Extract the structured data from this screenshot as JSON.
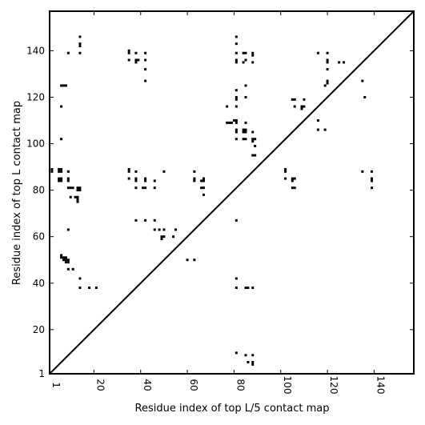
{
  "chart_data": {
    "type": "scatter",
    "title": "",
    "xlabel": "Residue index of top L/5 contact map",
    "ylabel": "Residue index of top L contact map",
    "xlim": [
      1,
      157
    ],
    "ylim": [
      1,
      157
    ],
    "xticks": [
      1,
      20,
      40,
      60,
      80,
      100,
      120,
      140
    ],
    "yticks": [
      1,
      20,
      40,
      60,
      80,
      100,
      120,
      140
    ],
    "grid": false,
    "legend": "none",
    "diagonal": true,
    "marker_color": "#000000",
    "series": [
      {
        "values": [
          [
            2,
            89
          ],
          [
            2,
            88
          ],
          [
            5,
            89
          ],
          [
            6,
            89
          ],
          [
            6,
            88
          ],
          [
            5,
            88
          ],
          [
            5,
            85
          ],
          [
            6,
            85
          ],
          [
            5,
            84
          ],
          [
            6,
            84
          ],
          [
            6,
            125
          ],
          [
            7,
            125
          ],
          [
            8,
            125
          ],
          [
            6,
            116
          ],
          [
            6,
            102
          ],
          [
            6,
            52
          ],
          [
            7,
            51
          ],
          [
            6,
            51
          ],
          [
            8,
            51
          ],
          [
            8,
            50
          ],
          [
            9,
            50
          ],
          [
            9,
            49
          ],
          [
            8,
            49
          ],
          [
            7,
            50
          ],
          [
            9,
            88
          ],
          [
            9,
            85
          ],
          [
            9,
            84
          ],
          [
            9,
            81
          ],
          [
            10,
            81
          ],
          [
            11,
            81
          ],
          [
            10,
            77
          ],
          [
            12,
            77
          ],
          [
            13,
            77
          ],
          [
            13,
            76
          ],
          [
            13,
            75
          ],
          [
            13,
            81
          ],
          [
            14,
            81
          ],
          [
            13,
            80
          ],
          [
            14,
            80
          ],
          [
            9,
            63
          ],
          [
            9,
            46
          ],
          [
            11,
            46
          ],
          [
            14,
            42
          ],
          [
            14,
            38
          ],
          [
            18,
            38
          ],
          [
            21,
            38
          ],
          [
            9,
            139
          ],
          [
            14,
            146
          ],
          [
            14,
            143
          ],
          [
            14,
            142
          ],
          [
            14,
            139
          ],
          [
            35,
            140
          ],
          [
            35,
            139
          ],
          [
            35,
            136
          ],
          [
            38,
            139
          ],
          [
            38,
            136
          ],
          [
            39,
            136
          ],
          [
            38,
            135
          ],
          [
            42,
            139
          ],
          [
            42,
            136
          ],
          [
            42,
            132
          ],
          [
            42,
            127
          ],
          [
            35,
            89
          ],
          [
            35,
            88
          ],
          [
            35,
            85
          ],
          [
            38,
            88
          ],
          [
            38,
            85
          ],
          [
            38,
            84
          ],
          [
            38,
            81
          ],
          [
            41,
            81
          ],
          [
            42,
            81
          ],
          [
            42,
            84
          ],
          [
            42,
            85
          ],
          [
            46,
            84
          ],
          [
            46,
            81
          ],
          [
            38,
            67
          ],
          [
            42,
            67
          ],
          [
            46,
            67
          ],
          [
            46,
            63
          ],
          [
            48,
            63
          ],
          [
            50,
            63
          ],
          [
            49,
            60
          ],
          [
            50,
            60
          ],
          [
            49,
            59
          ],
          [
            55,
            63
          ],
          [
            54,
            60
          ],
          [
            50,
            88
          ],
          [
            60,
            50
          ],
          [
            63,
            50
          ],
          [
            63,
            88
          ],
          [
            63,
            85
          ],
          [
            63,
            84
          ],
          [
            66,
            84
          ],
          [
            67,
            85
          ],
          [
            67,
            84
          ],
          [
            66,
            81
          ],
          [
            67,
            81
          ],
          [
            67,
            78
          ],
          [
            77,
            116
          ],
          [
            77,
            109
          ],
          [
            78,
            109
          ],
          [
            79,
            109
          ],
          [
            80,
            110
          ],
          [
            81,
            110
          ],
          [
            81,
            109
          ],
          [
            81,
            106
          ],
          [
            81,
            105
          ],
          [
            81,
            102
          ],
          [
            81,
            146
          ],
          [
            81,
            143
          ],
          [
            81,
            139
          ],
          [
            81,
            136
          ],
          [
            81,
            135
          ],
          [
            81,
            123
          ],
          [
            81,
            120
          ],
          [
            81,
            119
          ],
          [
            81,
            116
          ],
          [
            84,
            139
          ],
          [
            85,
            139
          ],
          [
            85,
            136
          ],
          [
            84,
            135
          ],
          [
            88,
            139
          ],
          [
            88,
            138
          ],
          [
            88,
            135
          ],
          [
            85,
            125
          ],
          [
            85,
            120
          ],
          [
            85,
            109
          ],
          [
            84,
            106
          ],
          [
            85,
            106
          ],
          [
            84,
            105
          ],
          [
            85,
            105
          ],
          [
            84,
            102
          ],
          [
            85,
            102
          ],
          [
            88,
            105
          ],
          [
            88,
            102
          ],
          [
            88,
            101
          ],
          [
            89,
            102
          ],
          [
            89,
            99
          ],
          [
            88,
            95
          ],
          [
            89,
            95
          ],
          [
            81,
            67
          ],
          [
            81,
            42
          ],
          [
            81,
            38
          ],
          [
            85,
            38
          ],
          [
            86,
            38
          ],
          [
            88,
            38
          ],
          [
            81,
            10
          ],
          [
            85,
            9
          ],
          [
            88,
            9
          ],
          [
            86,
            6
          ],
          [
            88,
            6
          ],
          [
            88,
            5
          ],
          [
            102,
            89
          ],
          [
            102,
            88
          ],
          [
            102,
            85
          ],
          [
            105,
            85
          ],
          [
            105,
            84
          ],
          [
            105,
            81
          ],
          [
            106,
            81
          ],
          [
            106,
            85
          ],
          [
            105,
            119
          ],
          [
            106,
            119
          ],
          [
            106,
            116
          ],
          [
            109,
            116
          ],
          [
            110,
            116
          ],
          [
            109,
            115
          ],
          [
            110,
            119
          ],
          [
            116,
            139
          ],
          [
            116,
            110
          ],
          [
            116,
            106
          ],
          [
            119,
            106
          ],
          [
            119,
            125
          ],
          [
            120,
            126
          ],
          [
            120,
            127
          ],
          [
            120,
            139
          ],
          [
            120,
            136
          ],
          [
            120,
            135
          ],
          [
            120,
            132
          ],
          [
            125,
            135
          ],
          [
            127,
            135
          ],
          [
            135,
            127
          ],
          [
            136,
            120
          ],
          [
            135,
            88
          ],
          [
            139,
            88
          ],
          [
            139,
            85
          ],
          [
            139,
            84
          ],
          [
            139,
            81
          ]
        ]
      }
    ]
  }
}
